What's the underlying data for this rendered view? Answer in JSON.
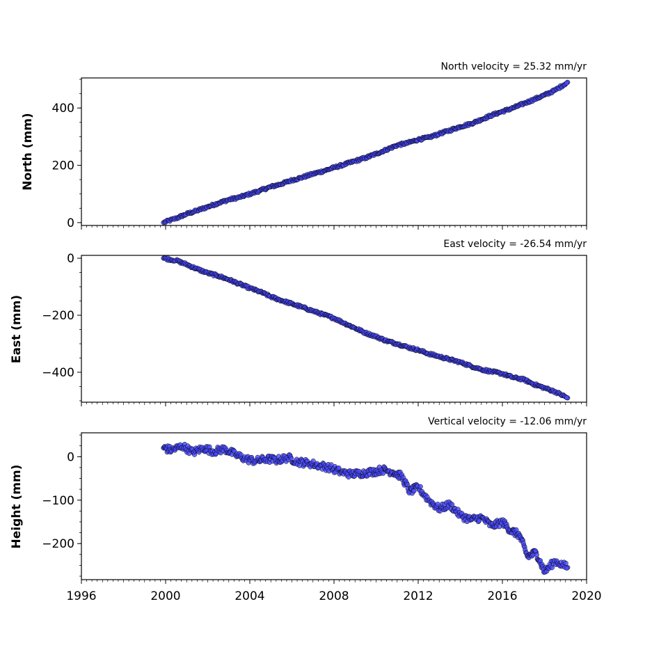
{
  "chart_data": [
    {
      "type": "scatter",
      "title": "North velocity = 25.32 mm/yr",
      "xlabel": "",
      "ylabel": "North (mm)",
      "xlim": [
        1996,
        2020
      ],
      "ylim": [
        -10,
        505
      ],
      "yticks": [
        0,
        200,
        400
      ],
      "ytick_labels": [
        "0",
        "200",
        "400"
      ],
      "point_color": "#4a4aff",
      "edge_color": "#000000",
      "series": [
        {
          "x": [
            1999.9,
            2000.5,
            2001.0,
            2001.5,
            2002.0,
            2002.5,
            2003.0,
            2003.5,
            2004.0,
            2004.5,
            2005.0,
            2005.5,
            2006.0,
            2006.5,
            2007.0,
            2007.5,
            2008.0,
            2008.5,
            2009.0,
            2009.5,
            2010.0,
            2010.5,
            2011.0,
            2011.5,
            2012.0,
            2012.5,
            2013.0,
            2013.5,
            2014.0,
            2014.5,
            2015.0,
            2015.5,
            2016.0,
            2016.5,
            2017.0,
            2017.5,
            2018.0,
            2018.5,
            2019.1
          ],
          "y": [
            0,
            15,
            30,
            42,
            55,
            68,
            80,
            88,
            100,
            112,
            125,
            135,
            148,
            158,
            170,
            180,
            192,
            203,
            215,
            226,
            240,
            255,
            270,
            278,
            290,
            297,
            310,
            322,
            335,
            345,
            360,
            375,
            388,
            400,
            415,
            430,
            445,
            462,
            490
          ]
        }
      ]
    },
    {
      "type": "scatter",
      "title": "East velocity = -26.54 mm/yr",
      "xlabel": "",
      "ylabel": "East (mm)",
      "xlim": [
        1996,
        2020
      ],
      "ylim": [
        -505,
        10
      ],
      "yticks": [
        0,
        -200,
        -400
      ],
      "ytick_labels": [
        "0",
        "−200",
        "−400"
      ],
      "point_color": "#4a4aff",
      "edge_color": "#000000",
      "series": [
        {
          "x": [
            1999.9,
            2000.5,
            2001.0,
            2001.5,
            2002.0,
            2002.5,
            2003.0,
            2003.5,
            2004.0,
            2004.5,
            2005.0,
            2005.5,
            2006.0,
            2006.5,
            2007.0,
            2007.5,
            2008.0,
            2008.5,
            2009.0,
            2009.5,
            2010.0,
            2010.5,
            2011.0,
            2011.5,
            2012.0,
            2012.5,
            2013.0,
            2013.5,
            2014.0,
            2014.5,
            2015.0,
            2015.5,
            2016.0,
            2016.5,
            2017.0,
            2017.5,
            2018.0,
            2018.5,
            2019.1
          ],
          "y": [
            0,
            -8,
            -22,
            -38,
            -52,
            -62,
            -75,
            -90,
            -105,
            -118,
            -135,
            -148,
            -160,
            -172,
            -185,
            -198,
            -210,
            -228,
            -245,
            -262,
            -275,
            -290,
            -300,
            -312,
            -322,
            -335,
            -345,
            -355,
            -365,
            -378,
            -390,
            -398,
            -405,
            -418,
            -425,
            -442,
            -455,
            -468,
            -490
          ]
        }
      ]
    },
    {
      "type": "scatter",
      "title": "Vertical velocity = -12.06 mm/yr",
      "xlabel": "",
      "ylabel": "Height (mm)",
      "xlim": [
        1996,
        2020
      ],
      "ylim": [
        -283,
        55
      ],
      "yticks": [
        0,
        -100,
        -200
      ],
      "ytick_labels": [
        "0",
        "−100",
        "−200"
      ],
      "xticks": [
        1996,
        2000,
        2004,
        2008,
        2012,
        2016,
        2020
      ],
      "xtick_labels": [
        "1996",
        "2000",
        "2004",
        "2008",
        "2012",
        "2016",
        "2020"
      ],
      "point_color": "#4a4aff",
      "edge_color": "#000000",
      "series": [
        {
          "x": [
            1999.9,
            2000.3,
            2000.8,
            2001.3,
            2001.8,
            2002.3,
            2002.8,
            2003.3,
            2003.8,
            2004.3,
            2004.8,
            2005.3,
            2005.8,
            2006.3,
            2006.8,
            2007.3,
            2007.8,
            2008.3,
            2008.8,
            2009.3,
            2009.8,
            2010.3,
            2010.8,
            2011.2,
            2011.6,
            2012.0,
            2012.5,
            2013.0,
            2013.5,
            2014.0,
            2014.5,
            2015.0,
            2015.5,
            2016.0,
            2016.4,
            2016.8,
            2017.2,
            2017.6,
            2018.0,
            2018.5,
            2019.1
          ],
          "y": [
            20,
            15,
            25,
            10,
            20,
            12,
            18,
            5,
            -5,
            -10,
            -5,
            -8,
            -2,
            -12,
            -15,
            -20,
            -25,
            -35,
            -40,
            -38,
            -35,
            -30,
            -35,
            -45,
            -80,
            -70,
            -100,
            -120,
            -110,
            -135,
            -145,
            -140,
            -160,
            -150,
            -170,
            -180,
            -230,
            -220,
            -265,
            -240,
            -255
          ]
        }
      ]
    }
  ]
}
